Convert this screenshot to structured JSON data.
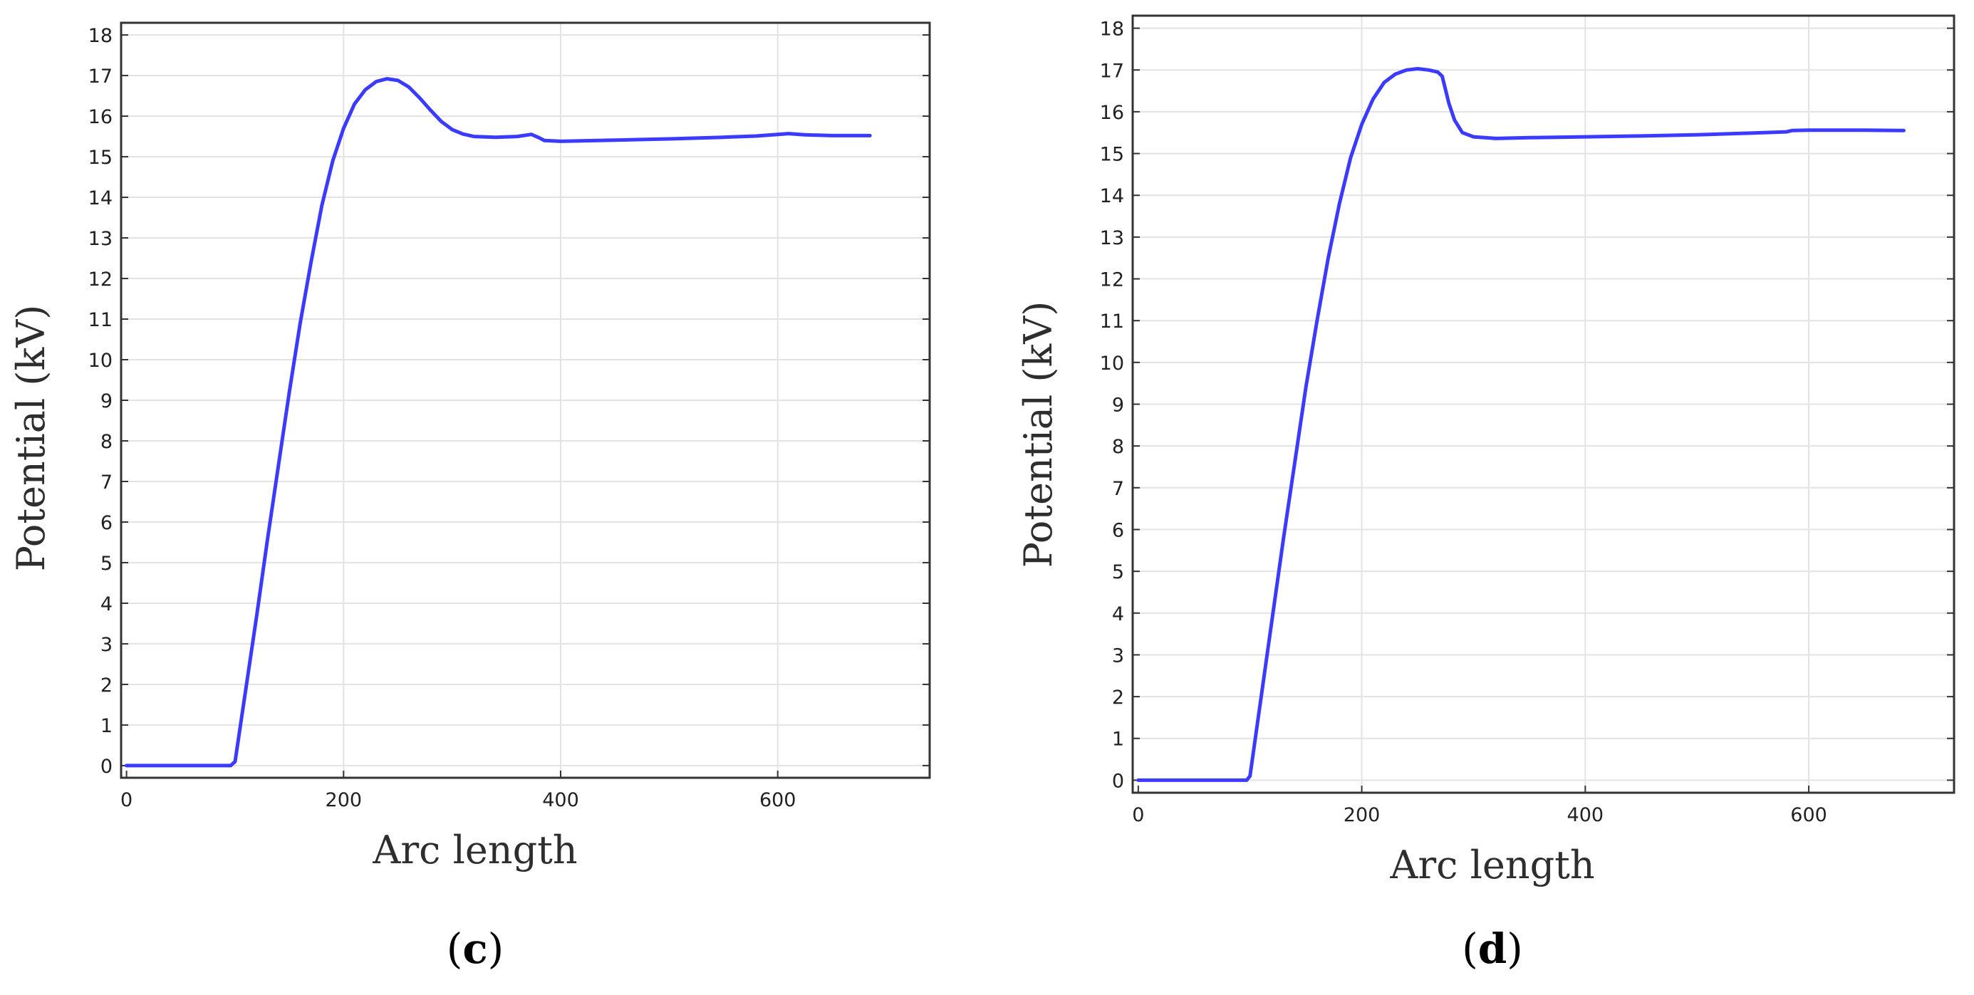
{
  "chart_data": [
    {
      "type": "line",
      "panel_label": "c",
      "xlabel": "Arc length",
      "ylabel": "Potential (kV)",
      "xlim": [
        -5,
        740
      ],
      "ylim": [
        -0.3,
        18.3
      ],
      "x_ticks": [
        0,
        200,
        400,
        600
      ],
      "y_ticks": [
        0,
        1,
        2,
        3,
        4,
        5,
        6,
        7,
        8,
        9,
        10,
        11,
        12,
        13,
        14,
        15,
        16,
        17,
        18
      ],
      "grid": true,
      "legend": "none",
      "series": [
        {
          "color": "#3b3bff",
          "points": [
            [
              0,
              0
            ],
            [
              96,
              0
            ],
            [
              100,
              0.1
            ],
            [
              110,
              1.9
            ],
            [
              120,
              3.7
            ],
            [
              130,
              5.6
            ],
            [
              140,
              7.4
            ],
            [
              150,
              9.2
            ],
            [
              160,
              10.9
            ],
            [
              170,
              12.4
            ],
            [
              180,
              13.8
            ],
            [
              190,
              14.9
            ],
            [
              200,
              15.7
            ],
            [
              210,
              16.3
            ],
            [
              220,
              16.65
            ],
            [
              230,
              16.85
            ],
            [
              240,
              16.92
            ],
            [
              250,
              16.88
            ],
            [
              260,
              16.72
            ],
            [
              270,
              16.45
            ],
            [
              280,
              16.15
            ],
            [
              290,
              15.87
            ],
            [
              300,
              15.67
            ],
            [
              310,
              15.56
            ],
            [
              320,
              15.5
            ],
            [
              340,
              15.48
            ],
            [
              360,
              15.5
            ],
            [
              373,
              15.55
            ],
            [
              380,
              15.47
            ],
            [
              385,
              15.4
            ],
            [
              400,
              15.38
            ],
            [
              450,
              15.41
            ],
            [
              500,
              15.44
            ],
            [
              550,
              15.48
            ],
            [
              580,
              15.51
            ],
            [
              600,
              15.55
            ],
            [
              610,
              15.57
            ],
            [
              625,
              15.54
            ],
            [
              650,
              15.52
            ],
            [
              685,
              15.52
            ]
          ]
        }
      ]
    },
    {
      "type": "line",
      "panel_label": "d",
      "xlabel": "Arc length",
      "ylabel": "Potential (kV)",
      "xlim": [
        -5,
        730
      ],
      "ylim": [
        -0.3,
        18.3
      ],
      "x_ticks": [
        0,
        200,
        400,
        600
      ],
      "y_ticks": [
        0,
        1,
        2,
        3,
        4,
        5,
        6,
        7,
        8,
        9,
        10,
        11,
        12,
        13,
        14,
        15,
        16,
        17,
        18
      ],
      "grid": true,
      "legend": "none",
      "series": [
        {
          "color": "#3b3bff",
          "points": [
            [
              0,
              0
            ],
            [
              97,
              0
            ],
            [
              100,
              0.1
            ],
            [
              110,
              2.0
            ],
            [
              120,
              3.9
            ],
            [
              130,
              5.8
            ],
            [
              140,
              7.6
            ],
            [
              150,
              9.4
            ],
            [
              160,
              11.0
            ],
            [
              170,
              12.5
            ],
            [
              180,
              13.8
            ],
            [
              190,
              14.9
            ],
            [
              200,
              15.7
            ],
            [
              210,
              16.3
            ],
            [
              220,
              16.7
            ],
            [
              230,
              16.9
            ],
            [
              240,
              17.0
            ],
            [
              250,
              17.03
            ],
            [
              260,
              17.0
            ],
            [
              268,
              16.95
            ],
            [
              272,
              16.85
            ],
            [
              278,
              16.2
            ],
            [
              283,
              15.8
            ],
            [
              290,
              15.5
            ],
            [
              300,
              15.4
            ],
            [
              320,
              15.36
            ],
            [
              350,
              15.38
            ],
            [
              400,
              15.4
            ],
            [
              450,
              15.42
            ],
            [
              500,
              15.45
            ],
            [
              550,
              15.49
            ],
            [
              580,
              15.52
            ],
            [
              585,
              15.55
            ],
            [
              600,
              15.56
            ],
            [
              650,
              15.56
            ],
            [
              685,
              15.55
            ]
          ]
        }
      ]
    }
  ]
}
